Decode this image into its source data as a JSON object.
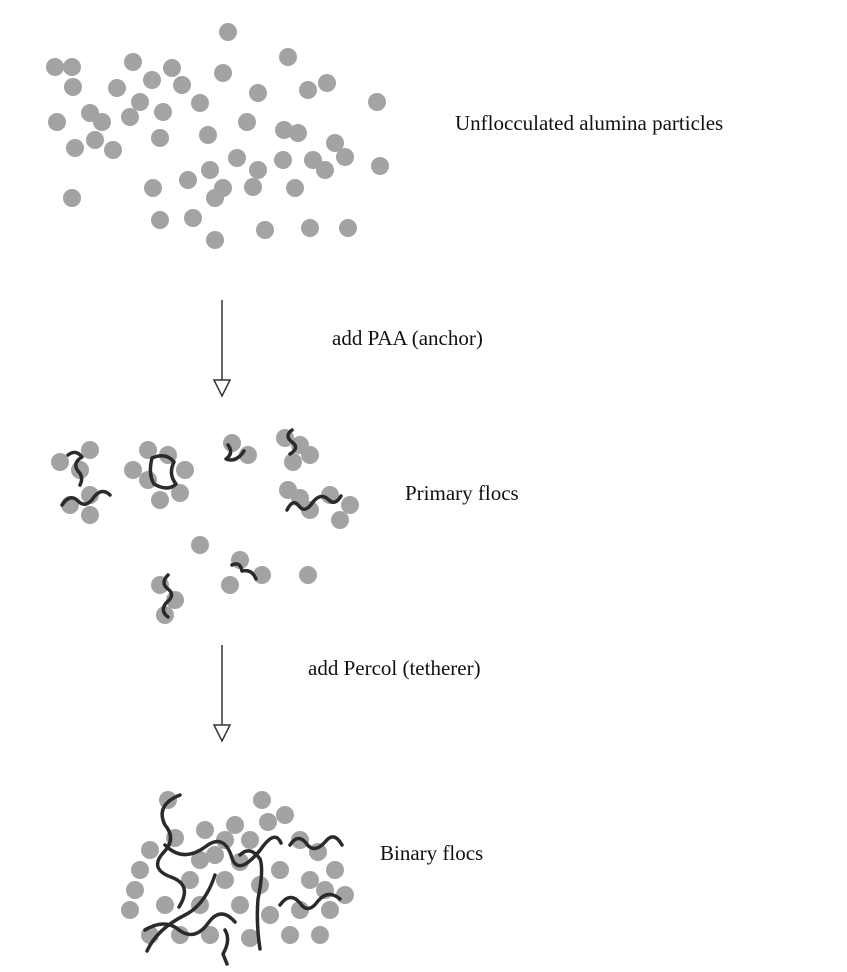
{
  "stages": [
    {
      "label": "Unflocculated alumina particles"
    },
    {
      "label": "Primary flocs"
    },
    {
      "label": "Binary flocs"
    }
  ],
  "steps": [
    {
      "label": "add PAA (anchor)"
    },
    {
      "label": "add Percol (tetherer)"
    }
  ]
}
